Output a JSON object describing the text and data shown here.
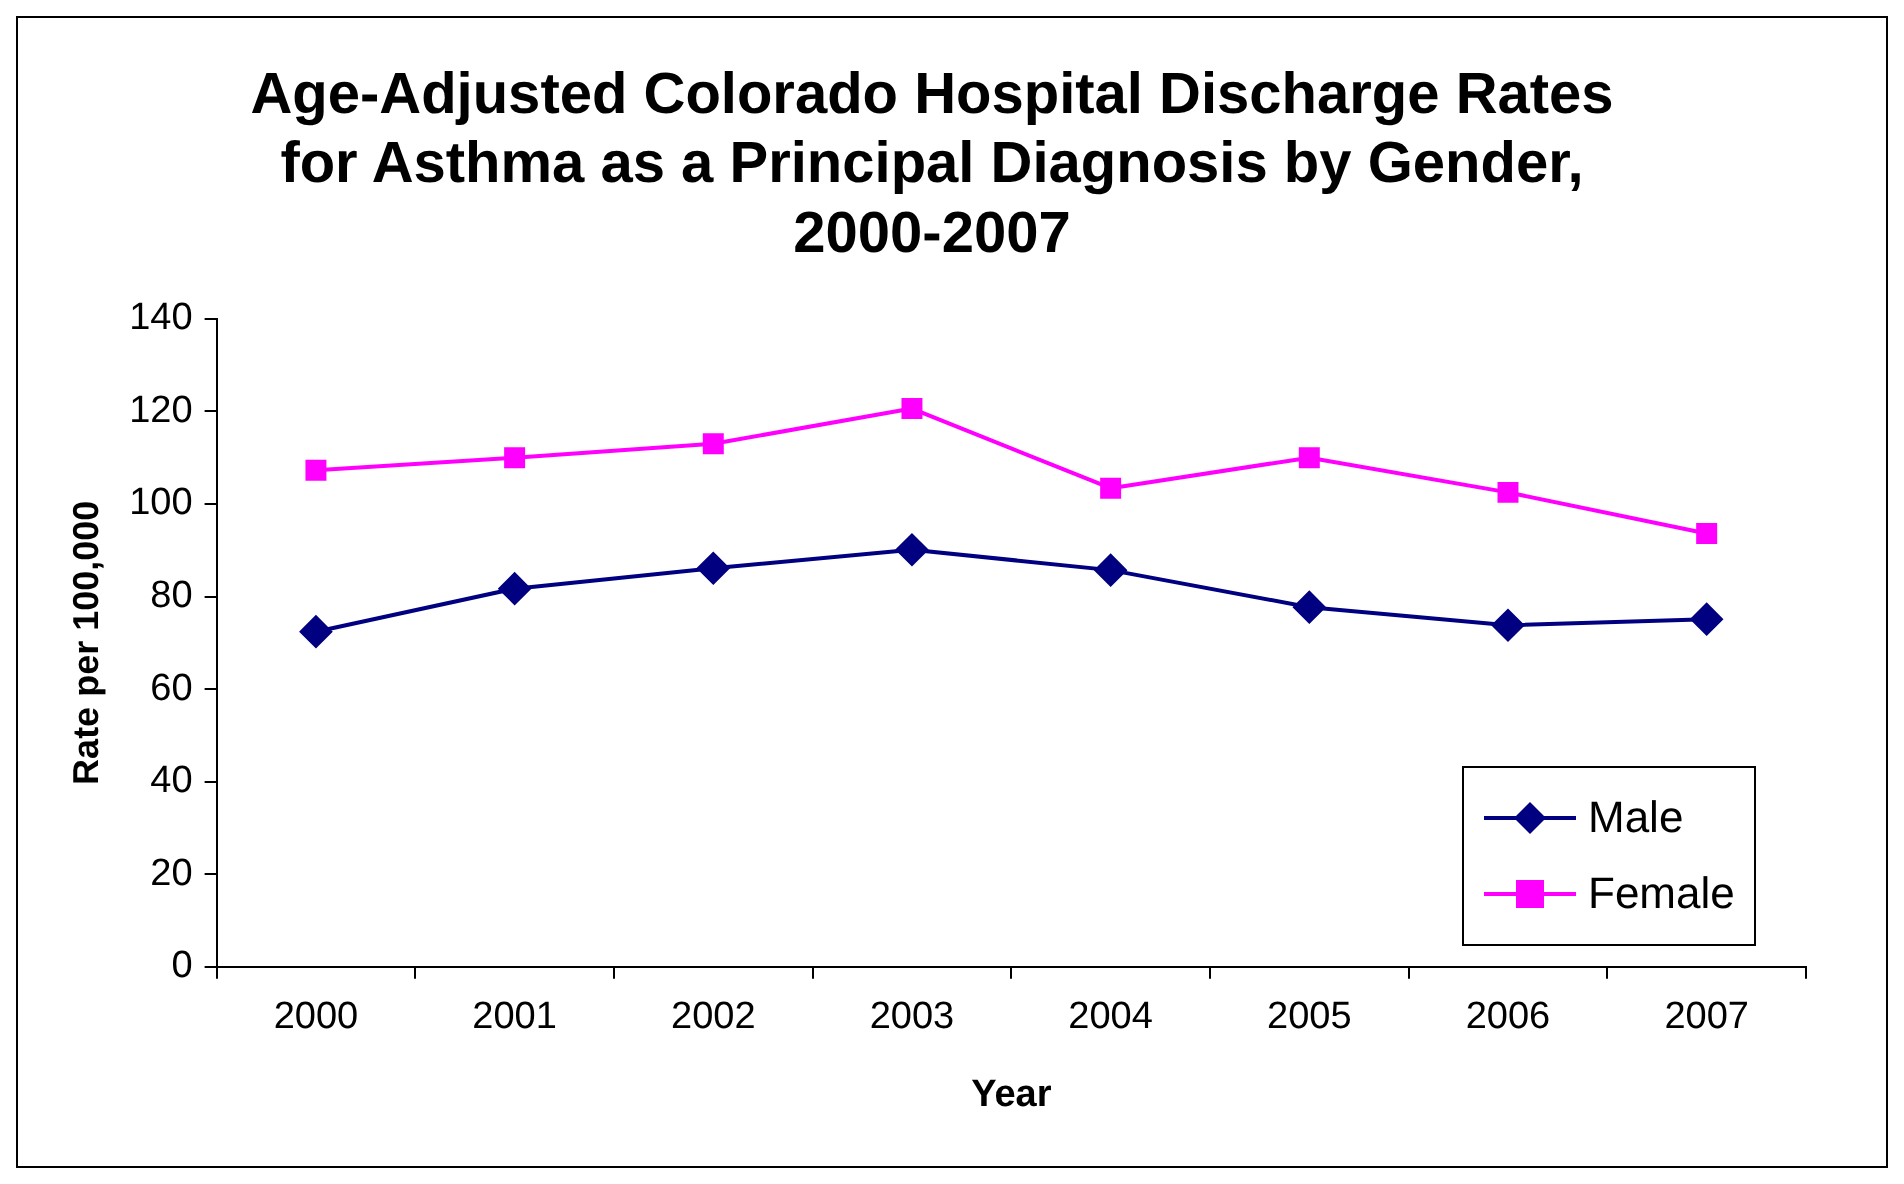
{
  "chart_data": {
    "type": "line",
    "title": "Age-Adjusted Colorado Hospital Discharge Rates for Asthma as a Principal Diagnosis by Gender, 2000-2007",
    "xlabel": "Year",
    "ylabel": "Rate per 100,000",
    "categories": [
      "2000",
      "2001",
      "2002",
      "2003",
      "2004",
      "2005",
      "2006",
      "2007"
    ],
    "series": [
      {
        "name": "Male",
        "color": "#000080",
        "marker": "diamond",
        "values": [
          72.4,
          81.7,
          86.1,
          90.1,
          85.7,
          77.7,
          73.8,
          75.1
        ]
      },
      {
        "name": "Female",
        "color": "#ff00ff",
        "marker": "square",
        "values": [
          107.3,
          110,
          113,
          120.6,
          103.4,
          110,
          102.5,
          93.6
        ]
      }
    ],
    "ylim": [
      0,
      140
    ],
    "yticks": [
      0,
      20,
      40,
      60,
      80,
      100,
      120,
      140
    ],
    "grid": false,
    "legend": "bottom right",
    "line_style": "solid"
  }
}
